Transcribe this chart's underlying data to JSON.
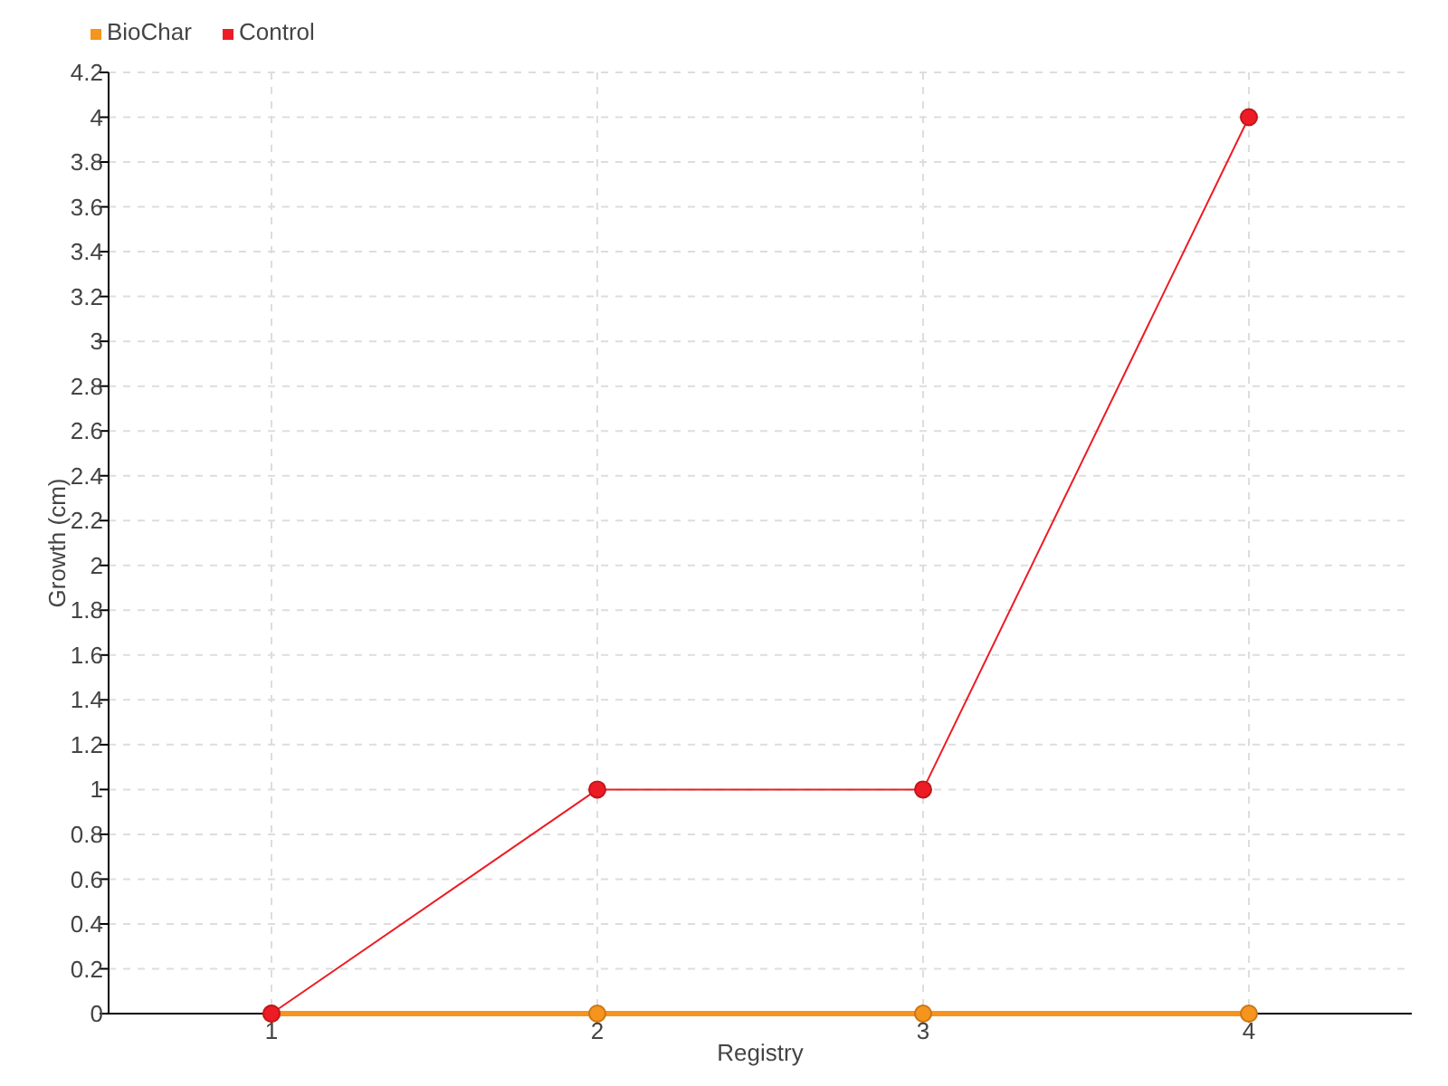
{
  "chart_data": {
    "type": "line",
    "xlabel": "Registry",
    "ylabel": "Growth (cm)",
    "categories": [
      "1",
      "2",
      "3",
      "4"
    ],
    "series": [
      {
        "name": "BioChar",
        "color": "#f7941d",
        "values": [
          0,
          0,
          0,
          0
        ]
      },
      {
        "name": "Control",
        "color": "#ed1c24",
        "values": [
          0,
          1,
          1,
          4
        ]
      }
    ],
    "ylim": [
      0,
      4.2
    ],
    "yticks": [
      0,
      0.2,
      0.4,
      0.6,
      0.8,
      1,
      1.2,
      1.4,
      1.6,
      1.8,
      2,
      2.2,
      2.4,
      2.6,
      2.8,
      3,
      3.2,
      3.4,
      3.6,
      3.8,
      4,
      4.2
    ],
    "grid": true,
    "legend": "top left",
    "marker": "circle",
    "line_style": "solid"
  }
}
